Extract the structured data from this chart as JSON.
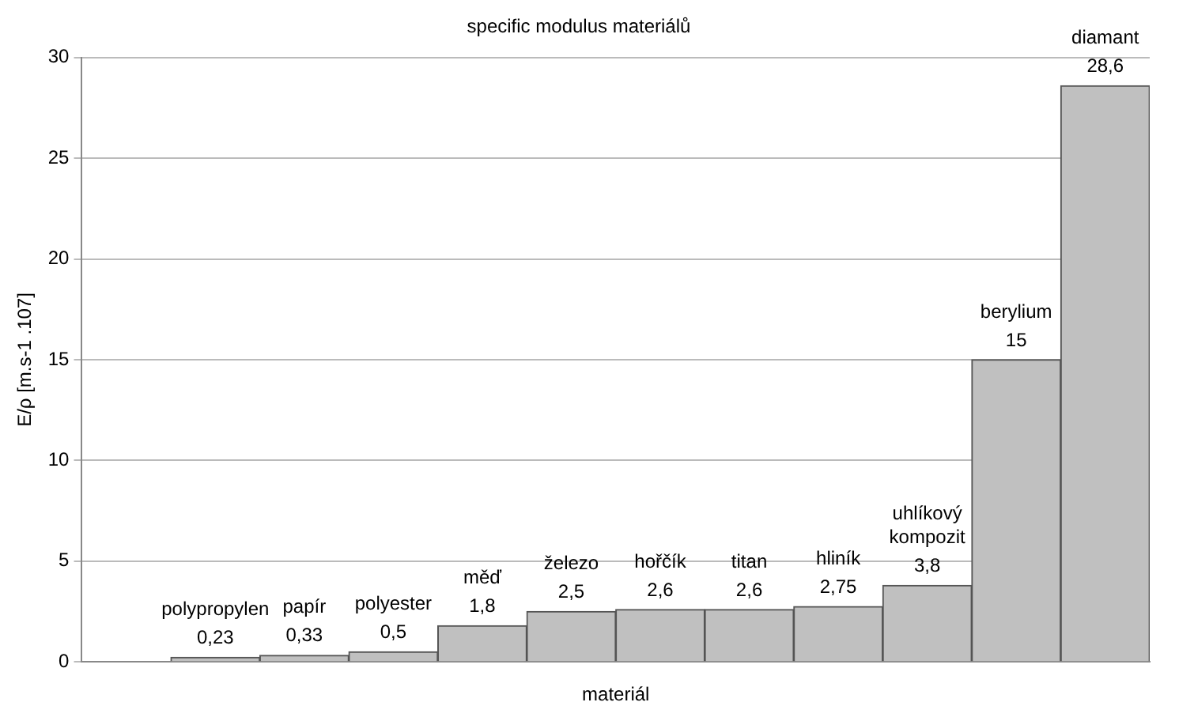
{
  "chart_data": {
    "type": "bar",
    "title": "specific modulus materiálů",
    "xlabel": "materiál",
    "ylabel": "E/ρ [m.s-1 .107]",
    "categories": [
      null,
      "polypropylen",
      "papír",
      "polyester",
      "měď",
      "železo",
      "hořčík",
      "titan",
      "hliník",
      "uhlíkový kompozit",
      "berylium",
      "diamant"
    ],
    "values": [
      null,
      0.23,
      0.33,
      0.5,
      1.8,
      2.5,
      2.6,
      2.6,
      2.75,
      3.8,
      15,
      28.6
    ],
    "value_labels": [
      null,
      "0,23",
      "0,33",
      "0,5",
      "1,8",
      "2,5",
      "2,6",
      "2,6",
      "2,75",
      "3,8",
      "15",
      "28,6"
    ],
    "color": "#c0c0c0",
    "ylim": [
      0,
      30
    ],
    "yticks": [
      0,
      5,
      10,
      15,
      20,
      25,
      30
    ],
    "grid": "y",
    "legend": false,
    "tick_labels": "y"
  }
}
